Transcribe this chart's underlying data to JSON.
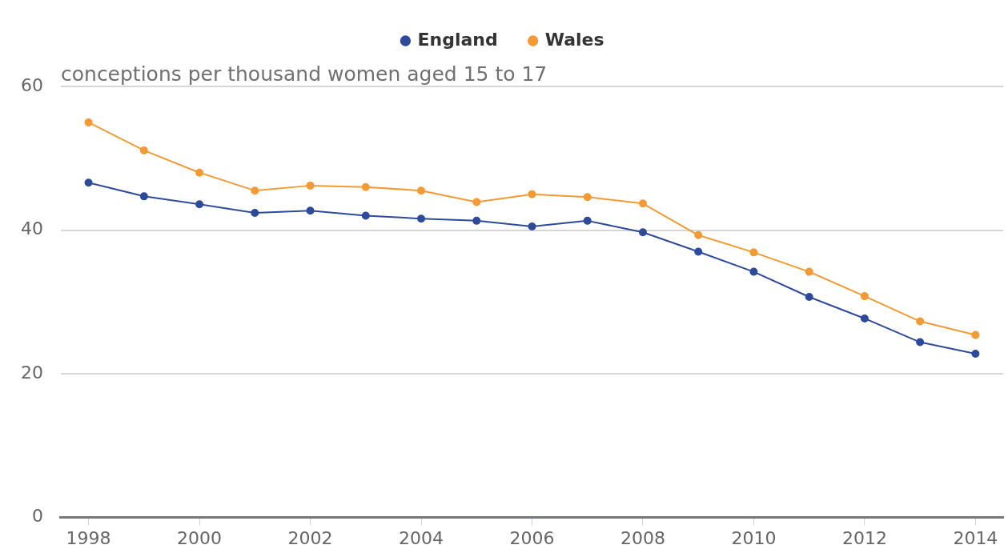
{
  "chart_data": {
    "type": "line",
    "ylabel": "conceptions per thousand women aged 15 to 17",
    "x": [
      1998,
      1999,
      2000,
      2001,
      2002,
      2003,
      2004,
      2005,
      2006,
      2007,
      2008,
      2009,
      2010,
      2011,
      2012,
      2013,
      2014
    ],
    "series": [
      {
        "name": "England",
        "color": "#2e4a9b",
        "values": [
          46.6,
          44.7,
          43.6,
          42.4,
          42.7,
          42.0,
          41.6,
          41.3,
          40.5,
          41.3,
          39.7,
          37.0,
          34.2,
          30.7,
          27.7,
          24.4,
          22.8
        ]
      },
      {
        "name": "Wales",
        "color": "#f39a34",
        "values": [
          55.0,
          51.1,
          48.0,
          45.5,
          46.2,
          46.0,
          45.5,
          43.9,
          45.0,
          44.6,
          43.7,
          39.3,
          36.9,
          34.2,
          30.8,
          27.3,
          25.4
        ]
      }
    ],
    "xlim": [
      1997.5,
      2014.5
    ],
    "xticks": [
      1998,
      2000,
      2002,
      2004,
      2006,
      2008,
      2010,
      2012,
      2014
    ],
    "ylim": [
      0,
      60
    ],
    "yticks": [
      0,
      20,
      40,
      60
    ],
    "grid": "y",
    "legend": "top",
    "marker": "circle",
    "line_style": "solid"
  }
}
